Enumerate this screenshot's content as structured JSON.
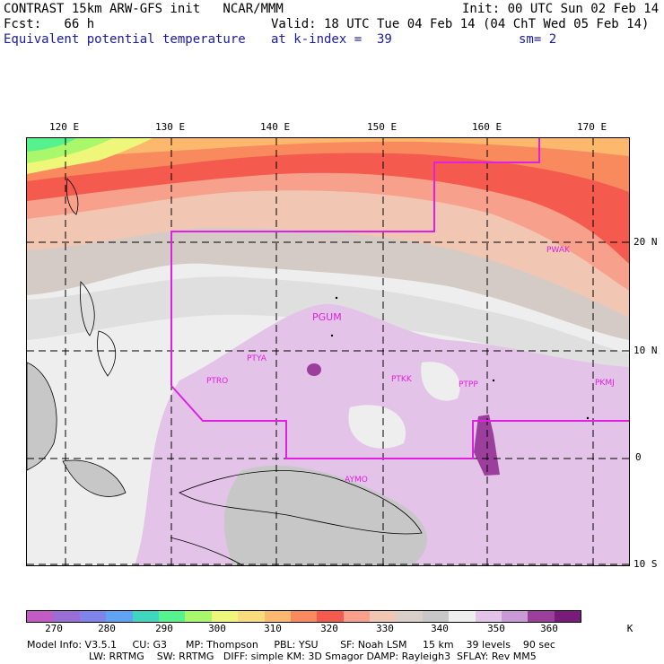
{
  "header": {
    "line1_left": "CONTRAST 15km ARW-GFS init   NCAR/MMM",
    "line1_right": "Init: 00 UTC Sun 02 Feb 14",
    "line2_left": "Fcst:   66 h",
    "line2_right": "Valid: 18 UTC Tue 04 Feb 14 (04 ChT Wed 05 Feb 14)",
    "line3_left": "Equivalent potential temperature",
    "line3_mid": "at k-index =  39",
    "line3_right": "sm= 2"
  },
  "map": {
    "lon_labels": [
      "120 E",
      "130 E",
      "140 E",
      "150 E",
      "160 E",
      "170 E"
    ],
    "lat_labels": [
      "20 N",
      "10 N",
      "0",
      "10 S"
    ],
    "stations": [
      "PGUM",
      "PTRO",
      "PTYA",
      "PTKK",
      "PTPP",
      "PKMJ",
      "PWAK",
      "AYMO"
    ],
    "boundary_color": "#e020e0",
    "grid_color": "#000000"
  },
  "colorbar": {
    "unit": "K",
    "labels": [
      "270",
      "280",
      "290",
      "300",
      "310",
      "320",
      "330",
      "340",
      "350",
      "360"
    ],
    "colors": [
      "#c45ac4",
      "#9a6ed6",
      "#7f83ea",
      "#5fa3f4",
      "#3fd6c0",
      "#55f28e",
      "#a9f76a",
      "#eef77a",
      "#f9dc7c",
      "#fcb96e",
      "#f98a5e",
      "#f45a4e",
      "#f7a08c",
      "#f1c7b3",
      "#d9cfc9",
      "#c7c7c7",
      "#eeeeee",
      "#e3c4e8",
      "#c99ad6",
      "#9c3f9c",
      "#7a1a7a"
    ]
  },
  "footer": {
    "line1": "Model Info: V3.5.1     CU: G3      MP: Thompson     PBL: YSU       SF: Noah LSM     15 km    39 levels    90 sec",
    "line2": "LW: RRTMG    SW: RRTMG   DIFF: simple KM: 3D Smagor DAMP: Rayleigh3  SFLAY: Rev MM5"
  }
}
